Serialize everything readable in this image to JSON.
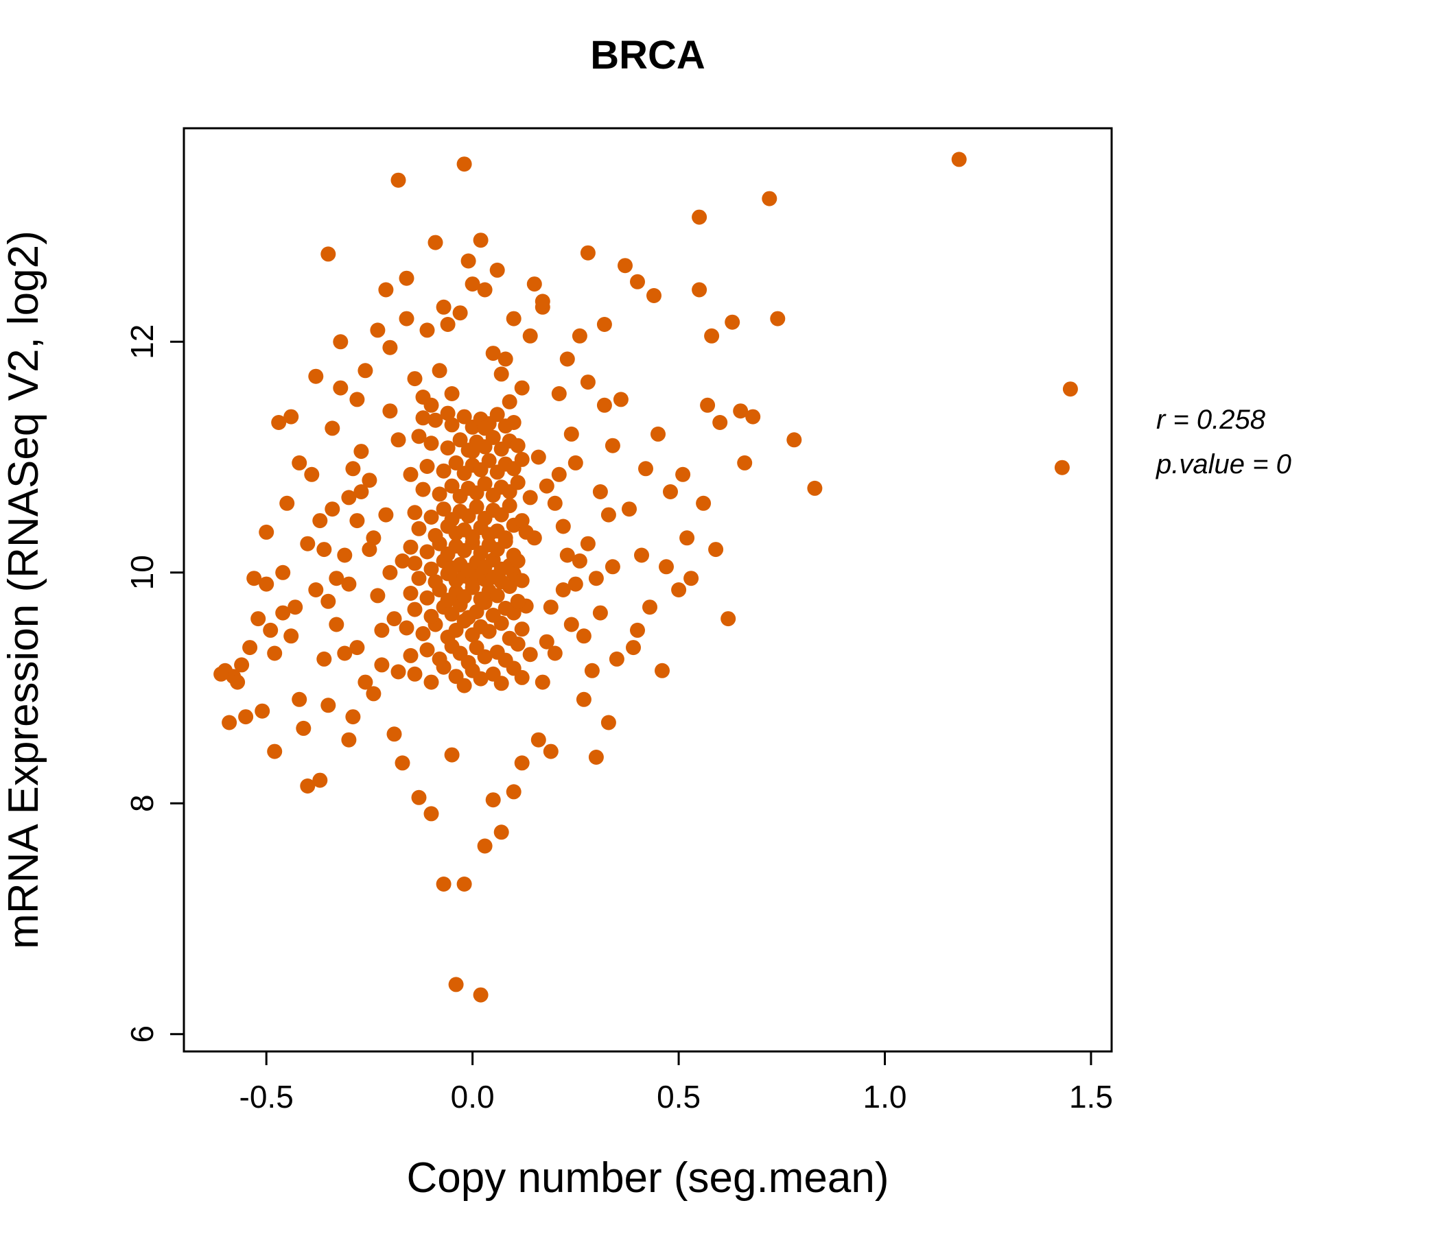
{
  "title": "BRCA",
  "annotation": {
    "r_label": "r = 0.258",
    "p_label": "p.value = 0"
  },
  "colors": {
    "accent": "#D95F02",
    "axis": "#000000",
    "background": "#FFFFFF",
    "title": "#D95F02"
  },
  "chart_data": {
    "type": "scatter",
    "title": "BRCA",
    "xlabel": "Copy number (seg.mean)",
    "ylabel": "mRNA Expression (RNASeq V2, log2)",
    "xlim": [
      -0.7,
      1.55
    ],
    "ylim": [
      5.85,
      13.85
    ],
    "xticks": [
      -0.5,
      0.0,
      0.5,
      1.0,
      1.5
    ],
    "xtick_labels": [
      "-0.5",
      "0.0",
      "0.5",
      "1.0",
      "1.5"
    ],
    "yticks": [
      6,
      8,
      10,
      12
    ],
    "ytick_labels": [
      "6",
      "8",
      "10",
      "12"
    ],
    "grid": false,
    "legend": "none",
    "point_color": "#D95F02",
    "stats": {
      "r": 0.258,
      "p_value": 0
    },
    "points": [
      [
        -0.14,
        9.12
      ],
      [
        -0.1,
        9.05
      ],
      [
        -0.07,
        9.18
      ],
      [
        -0.04,
        9.1
      ],
      [
        -0.02,
        9.02
      ],
      [
        0.0,
        9.15
      ],
      [
        0.02,
        9.08
      ],
      [
        0.05,
        9.12
      ],
      [
        0.07,
        9.04
      ],
      [
        0.1,
        9.17
      ],
      [
        0.12,
        9.09
      ],
      [
        -0.18,
        9.14
      ],
      [
        -0.15,
        9.28
      ],
      [
        -0.11,
        9.33
      ],
      [
        -0.08,
        9.25
      ],
      [
        -0.05,
        9.36
      ],
      [
        -0.03,
        9.3
      ],
      [
        -0.01,
        9.22
      ],
      [
        0.01,
        9.35
      ],
      [
        0.03,
        9.27
      ],
      [
        0.06,
        9.31
      ],
      [
        0.08,
        9.24
      ],
      [
        0.11,
        9.38
      ],
      [
        0.14,
        9.29
      ],
      [
        -0.16,
        9.52
      ],
      [
        -0.12,
        9.47
      ],
      [
        -0.09,
        9.55
      ],
      [
        -0.06,
        9.44
      ],
      [
        -0.04,
        9.5
      ],
      [
        -0.02,
        9.58
      ],
      [
        0.0,
        9.46
      ],
      [
        0.02,
        9.53
      ],
      [
        0.04,
        9.49
      ],
      [
        0.07,
        9.56
      ],
      [
        0.09,
        9.43
      ],
      [
        0.12,
        9.51
      ],
      [
        -0.14,
        9.68
      ],
      [
        -0.1,
        9.62
      ],
      [
        -0.07,
        9.7
      ],
      [
        -0.05,
        9.64
      ],
      [
        -0.03,
        9.72
      ],
      [
        -0.01,
        9.61
      ],
      [
        0.01,
        9.66
      ],
      [
        0.03,
        9.74
      ],
      [
        0.05,
        9.63
      ],
      [
        0.08,
        9.69
      ],
      [
        0.1,
        9.65
      ],
      [
        0.13,
        9.71
      ],
      [
        -0.15,
        9.82
      ],
      [
        -0.11,
        9.78
      ],
      [
        -0.08,
        9.85
      ],
      [
        -0.06,
        9.76
      ],
      [
        -0.04,
        9.83
      ],
      [
        -0.02,
        9.79
      ],
      [
        0.0,
        9.87
      ],
      [
        0.02,
        9.77
      ],
      [
        0.04,
        9.84
      ],
      [
        0.06,
        9.8
      ],
      [
        0.09,
        9.88
      ],
      [
        0.11,
        9.75
      ],
      [
        -0.13,
        9.95
      ],
      [
        -0.09,
        9.92
      ],
      [
        -0.06,
        9.99
      ],
      [
        -0.04,
        9.93
      ],
      [
        -0.02,
        9.97
      ],
      [
        0.0,
        9.91
      ],
      [
        0.01,
        9.98
      ],
      [
        0.03,
        9.94
      ],
      [
        0.05,
        9.96
      ],
      [
        0.07,
        9.92
      ],
      [
        0.1,
        9.99
      ],
      [
        0.12,
        9.93
      ],
      [
        -0.14,
        10.08
      ],
      [
        -0.1,
        10.03
      ],
      [
        -0.07,
        10.1
      ],
      [
        -0.05,
        10.04
      ],
      [
        -0.03,
        10.07
      ],
      [
        -0.01,
        10.02
      ],
      [
        0.01,
        10.09
      ],
      [
        0.03,
        10.05
      ],
      [
        0.05,
        10.11
      ],
      [
        0.07,
        10.03
      ],
      [
        0.09,
        10.06
      ],
      [
        0.11,
        10.1
      ],
      [
        -0.15,
        10.22
      ],
      [
        -0.11,
        10.18
      ],
      [
        -0.08,
        10.25
      ],
      [
        -0.06,
        10.16
      ],
      [
        -0.04,
        10.23
      ],
      [
        -0.02,
        10.19
      ],
      [
        0.0,
        10.26
      ],
      [
        0.02,
        10.17
      ],
      [
        0.04,
        10.24
      ],
      [
        0.06,
        10.2
      ],
      [
        0.08,
        10.27
      ],
      [
        0.1,
        10.15
      ],
      [
        -0.13,
        10.38
      ],
      [
        -0.09,
        10.32
      ],
      [
        -0.06,
        10.4
      ],
      [
        -0.04,
        10.34
      ],
      [
        -0.02,
        10.37
      ],
      [
        0.0,
        10.31
      ],
      [
        0.02,
        10.39
      ],
      [
        0.04,
        10.33
      ],
      [
        0.06,
        10.36
      ],
      [
        0.08,
        10.3
      ],
      [
        0.1,
        10.41
      ],
      [
        0.13,
        10.35
      ],
      [
        -0.14,
        10.52
      ],
      [
        -0.1,
        10.48
      ],
      [
        -0.07,
        10.55
      ],
      [
        -0.05,
        10.46
      ],
      [
        -0.03,
        10.53
      ],
      [
        -0.01,
        10.49
      ],
      [
        0.01,
        10.57
      ],
      [
        0.03,
        10.47
      ],
      [
        0.05,
        10.54
      ],
      [
        0.07,
        10.5
      ],
      [
        0.09,
        10.58
      ],
      [
        0.12,
        10.45
      ],
      [
        -0.12,
        10.72
      ],
      [
        -0.08,
        10.68
      ],
      [
        -0.05,
        10.75
      ],
      [
        -0.03,
        10.66
      ],
      [
        -0.01,
        10.73
      ],
      [
        0.01,
        10.69
      ],
      [
        0.03,
        10.77
      ],
      [
        0.05,
        10.67
      ],
      [
        0.07,
        10.74
      ],
      [
        0.09,
        10.7
      ],
      [
        0.11,
        10.78
      ],
      [
        0.14,
        10.65
      ],
      [
        -0.11,
        10.92
      ],
      [
        -0.07,
        10.88
      ],
      [
        -0.04,
        10.95
      ],
      [
        -0.02,
        10.86
      ],
      [
        0.0,
        10.93
      ],
      [
        0.02,
        10.89
      ],
      [
        0.04,
        10.97
      ],
      [
        0.06,
        10.87
      ],
      [
        0.08,
        10.94
      ],
      [
        0.1,
        10.9
      ],
      [
        0.12,
        10.98
      ],
      [
        -0.15,
        10.85
      ],
      [
        -0.1,
        11.12
      ],
      [
        -0.06,
        11.08
      ],
      [
        -0.03,
        11.15
      ],
      [
        -0.01,
        11.06
      ],
      [
        0.01,
        11.13
      ],
      [
        0.03,
        11.09
      ],
      [
        0.05,
        11.17
      ],
      [
        0.07,
        11.07
      ],
      [
        0.09,
        11.14
      ],
      [
        0.11,
        11.1
      ],
      [
        -0.13,
        11.18
      ],
      [
        0.0,
        11.05
      ],
      [
        -0.09,
        11.32
      ],
      [
        -0.05,
        11.28
      ],
      [
        -0.02,
        11.35
      ],
      [
        0.0,
        11.26
      ],
      [
        0.02,
        11.33
      ],
      [
        0.04,
        11.29
      ],
      [
        0.06,
        11.37
      ],
      [
        0.08,
        11.27
      ],
      [
        -0.12,
        11.34
      ],
      [
        0.1,
        11.3
      ],
      [
        -0.06,
        11.38
      ],
      [
        0.03,
        11.25
      ],
      [
        -0.3,
        9.9
      ],
      [
        -0.28,
        10.45
      ],
      [
        -0.33,
        9.55
      ],
      [
        -0.25,
        10.8
      ],
      [
        -0.22,
        9.2
      ],
      [
        -0.27,
        11.05
      ],
      [
        -0.31,
        10.15
      ],
      [
        -0.24,
        8.95
      ],
      [
        -0.2,
        11.4
      ],
      [
        -0.35,
        9.75
      ],
      [
        0.2,
        10.6
      ],
      [
        0.22,
        9.85
      ],
      [
        0.25,
        10.95
      ],
      [
        0.18,
        9.4
      ],
      [
        0.28,
        10.25
      ],
      [
        0.31,
        9.65
      ],
      [
        0.24,
        11.2
      ],
      [
        0.27,
        8.9
      ],
      [
        0.33,
        10.5
      ],
      [
        0.21,
        11.55
      ],
      [
        -0.19,
        8.6
      ],
      [
        -0.23,
        12.1
      ],
      [
        0.17,
        12.3
      ],
      [
        0.19,
        8.45
      ],
      [
        -0.26,
        11.75
      ],
      [
        0.23,
        11.85
      ],
      [
        -0.29,
        8.75
      ],
      [
        0.26,
        12.05
      ],
      [
        -0.21,
        12.45
      ],
      [
        0.29,
        9.15
      ],
      [
        -0.17,
        8.35
      ],
      [
        0.16,
        8.55
      ],
      [
        -0.32,
        11.6
      ],
      [
        0.32,
        11.45
      ],
      [
        -0.34,
        10.55
      ],
      [
        0.34,
        10.05
      ],
      [
        -0.16,
        12.2
      ],
      [
        0.15,
        12.5
      ],
      [
        -0.28,
        9.35
      ],
      [
        0.3,
        9.95
      ],
      [
        -0.24,
        10.3
      ],
      [
        0.22,
        10.4
      ],
      [
        -0.2,
        10.0
      ],
      [
        0.18,
        10.75
      ],
      [
        -0.3,
        10.65
      ],
      [
        0.26,
        10.1
      ],
      [
        -0.22,
        9.5
      ],
      [
        0.2,
        9.3
      ],
      [
        -0.26,
        9.05
      ],
      [
        0.24,
        9.55
      ],
      [
        0.16,
        11.0
      ],
      [
        -0.18,
        11.15
      ],
      [
        0.21,
        10.85
      ],
      [
        -0.25,
        10.2
      ],
      [
        0.19,
        9.7
      ],
      [
        -0.33,
        9.95
      ],
      [
        0.27,
        9.45
      ],
      [
        -0.31,
        9.3
      ],
      [
        0.23,
        10.15
      ],
      [
        -0.27,
        10.7
      ],
      [
        0.35,
        9.25
      ],
      [
        -0.35,
        8.85
      ],
      [
        0.33,
        8.7
      ],
      [
        -0.19,
        9.6
      ],
      [
        0.17,
        9.05
      ],
      [
        -0.23,
        9.8
      ],
      [
        0.25,
        9.9
      ],
      [
        -0.29,
        10.9
      ],
      [
        0.31,
        10.7
      ],
      [
        -0.21,
        10.5
      ],
      [
        0.15,
        10.3
      ],
      [
        -0.17,
        10.1
      ],
      [
        0.34,
        11.1
      ],
      [
        -0.34,
        11.25
      ],
      [
        0.32,
        12.15
      ],
      [
        -0.32,
        12.0
      ],
      [
        0.28,
        11.65
      ],
      [
        -0.28,
        11.5
      ],
      [
        0.3,
        8.4
      ],
      [
        -0.3,
        8.55
      ],
      [
        -0.6,
        9.15
      ],
      [
        -0.58,
        9.1
      ],
      [
        -0.55,
        8.75
      ],
      [
        -0.52,
        9.6
      ],
      [
        -0.5,
        9.9
      ],
      [
        -0.48,
        9.3
      ],
      [
        -0.46,
        10.0
      ],
      [
        -0.44,
        9.45
      ],
      [
        -0.42,
        8.9
      ],
      [
        -0.4,
        10.25
      ],
      [
        -0.57,
        9.05
      ],
      [
        -0.53,
        9.95
      ],
      [
        -0.47,
        11.3
      ],
      [
        -0.45,
        10.6
      ],
      [
        -0.43,
        9.7
      ],
      [
        -0.41,
        8.65
      ],
      [
        -0.39,
        10.85
      ],
      [
        -0.38,
        9.85
      ],
      [
        -0.37,
        10.45
      ],
      [
        -0.36,
        9.25
      ],
      [
        -0.49,
        9.5
      ],
      [
        -0.51,
        8.8
      ],
      [
        -0.54,
        9.35
      ],
      [
        -0.56,
        9.2
      ],
      [
        -0.61,
        9.12
      ],
      [
        -0.59,
        8.7
      ],
      [
        -0.44,
        11.35
      ],
      [
        -0.4,
        8.15
      ],
      [
        -0.37,
        8.2
      ],
      [
        -0.42,
        10.95
      ],
      [
        -0.46,
        9.65
      ],
      [
        -0.38,
        11.7
      ],
      [
        -0.5,
        10.35
      ],
      [
        -0.48,
        8.45
      ],
      [
        -0.36,
        10.2
      ],
      [
        0.38,
        10.55
      ],
      [
        0.4,
        9.5
      ],
      [
        0.42,
        10.9
      ],
      [
        0.45,
        11.2
      ],
      [
        0.48,
        10.7
      ],
      [
        0.5,
        9.85
      ],
      [
        0.52,
        10.3
      ],
      [
        0.55,
        12.45
      ],
      [
        0.57,
        11.45
      ],
      [
        0.6,
        11.3
      ],
      [
        0.62,
        9.6
      ],
      [
        0.65,
        11.4
      ],
      [
        0.58,
        12.05
      ],
      [
        0.44,
        12.4
      ],
      [
        0.4,
        12.52
      ],
      [
        0.47,
        10.05
      ],
      [
        0.53,
        9.95
      ],
      [
        0.63,
        12.17
      ],
      [
        0.68,
        11.35
      ],
      [
        0.78,
        11.15
      ],
      [
        0.36,
        11.5
      ],
      [
        0.39,
        9.35
      ],
      [
        0.43,
        9.7
      ],
      [
        0.59,
        10.2
      ],
      [
        0.66,
        10.95
      ],
      [
        0.74,
        12.2
      ],
      [
        0.46,
        9.15
      ],
      [
        0.51,
        10.85
      ],
      [
        0.41,
        10.15
      ],
      [
        0.56,
        10.6
      ],
      [
        -0.16,
        12.55
      ],
      [
        -0.07,
        12.3
      ],
      [
        0.03,
        12.45
      ],
      [
        0.1,
        12.2
      ],
      [
        -0.11,
        12.1
      ],
      [
        0.06,
        12.62
      ],
      [
        -0.03,
        12.25
      ],
      [
        0.14,
        12.05
      ],
      [
        -0.2,
        11.95
      ],
      [
        0.0,
        12.5
      ],
      [
        0.08,
        11.85
      ],
      [
        -0.08,
        11.75
      ],
      [
        0.17,
        12.35
      ],
      [
        -0.14,
        11.68
      ],
      [
        0.05,
        11.9
      ],
      [
        0.12,
        11.6
      ],
      [
        -0.05,
        11.55
      ],
      [
        -0.01,
        12.7
      ],
      [
        0.09,
        11.48
      ],
      [
        -0.1,
        11.45
      ],
      [
        0.02,
        12.88
      ],
      [
        -0.06,
        12.15
      ],
      [
        0.07,
        11.72
      ],
      [
        -0.12,
        11.52
      ],
      [
        1.18,
        13.58
      ],
      [
        -0.02,
        13.54
      ],
      [
        -0.18,
        13.4
      ],
      [
        0.72,
        13.24
      ],
      [
        0.55,
        13.08
      ],
      [
        -0.35,
        12.76
      ],
      [
        -0.09,
        12.86
      ],
      [
        0.28,
        12.77
      ],
      [
        0.37,
        12.66
      ],
      [
        1.45,
        11.59
      ],
      [
        1.43,
        10.91
      ],
      [
        0.83,
        10.73
      ],
      [
        -0.04,
        6.43
      ],
      [
        0.02,
        6.34
      ],
      [
        -0.07,
        7.3
      ],
      [
        -0.02,
        7.3
      ],
      [
        0.03,
        7.63
      ],
      [
        -0.1,
        7.91
      ],
      [
        0.05,
        8.03
      ],
      [
        0.07,
        7.75
      ],
      [
        -0.05,
        8.42
      ],
      [
        0.1,
        8.1
      ],
      [
        -0.13,
        8.05
      ],
      [
        0.12,
        8.35
      ]
    ]
  }
}
